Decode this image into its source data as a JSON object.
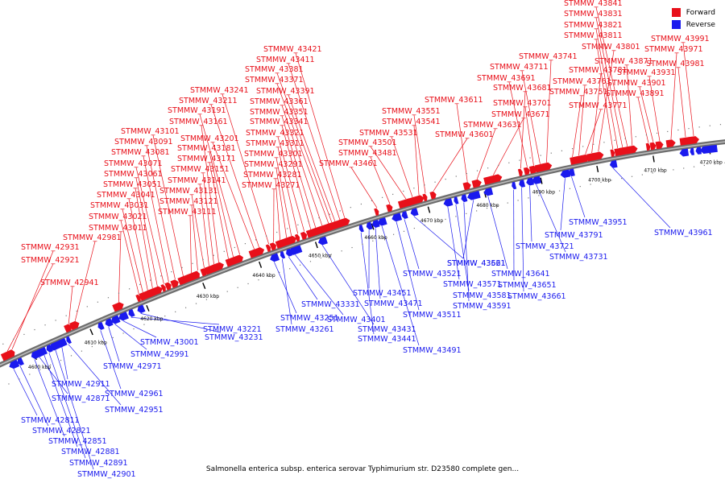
{
  "caption": "Salmonella enterica subsp. enterica serovar Typhimurium str. D23580 complete gen...",
  "legend": [
    {
      "label": "Forward",
      "color": "#e8101a"
    },
    {
      "label": "Reverse",
      "color": "#1a1aee"
    }
  ],
  "colors": {
    "forward": "#e8101a",
    "reverse": "#1a1aee",
    "backbone": "#6e6e6e"
  },
  "kbp_ticks": [
    "4600 kbp",
    "4610 kbp",
    "4620 kbp",
    "4630 kbp",
    "4640 kbp",
    "4650 kbp",
    "4660 kbp",
    "4670 kbp",
    "4680 kbp",
    "4690 kbp",
    "4700 kbp",
    "4710 kbp",
    "4720 kbp"
  ],
  "forward_labels": [
    "STMMW_42921",
    "STMMW_42931",
    "STMMW_42941",
    "STMMW_42981",
    "STMMW_43011",
    "STMMW_43021",
    "STMMW_43031",
    "STMMW_43041",
    "STMMW_43051",
    "STMMW_43061",
    "STMMW_43071",
    "STMMW_43081",
    "STMMW_43091",
    "STMMW_43101",
    "STMMW_43111",
    "STMMW_43121",
    "STMMW_43131",
    "STMMW_43141",
    "STMMW_43151",
    "STMMW_43161",
    "STMMW_43171",
    "STMMW_43181",
    "STMMW_43191",
    "STMMW_43201",
    "STMMW_43211",
    "STMMW_43241",
    "STMMW_43271",
    "STMMW_43281",
    "STMMW_43291",
    "STMMW_43301",
    "STMMW_43311",
    "STMMW_43321",
    "STMMW_43341",
    "STMMW_43351",
    "STMMW_43361",
    "STMMW_43371",
    "STMMW_43381",
    "STMMW_43391",
    "STMMW_43411",
    "STMMW_43421",
    "STMMW_43461",
    "STMMW_43481",
    "STMMW_43501",
    "STMMW_43531",
    "STMMW_43541",
    "STMMW_43551",
    "STMMW_43601",
    "STMMW_43611",
    "STMMW_43631",
    "STMMW_43671",
    "STMMW_43681",
    "STMMW_43691",
    "STMMW_43701",
    "STMMW_43711",
    "STMMW_43741",
    "STMMW_43751",
    "STMMW_43761",
    "STMMW_43771",
    "STMMW_43781",
    "STMMW_43801",
    "STMMW_43811",
    "STMMW_43821",
    "STMMW_43831",
    "STMMW_43841",
    "STMMW_43871",
    "STMMW_43891",
    "STMMW_43901",
    "STMMW_43931",
    "STMMW_43971",
    "STMMW_43981",
    "STMMW_43991"
  ],
  "reverse_labels": [
    "STMMW_42811",
    "STMMW_42821",
    "STMMW_42851",
    "STMMW_42871",
    "STMMW_42881",
    "STMMW_42891",
    "STMMW_42901",
    "STMMW_42911",
    "STMMW_42951",
    "STMMW_42961",
    "STMMW_42971",
    "STMMW_42991",
    "STMMW_43001",
    "STMMW_43221",
    "STMMW_43231",
    "STMMW_43251",
    "STMMW_43261",
    "STMMW_43331",
    "STMMW_43401",
    "STMMW_43431",
    "STMMW_43441",
    "STMMW_43451",
    "STMMW_43471",
    "STMMW_43491",
    "STMMW_43511",
    "STMMW_43521",
    "STMMW_43561",
    "STMMW_43571",
    "STMMW_43581",
    "STMMW_43591",
    "STMMW_43621",
    "STMMW_43641",
    "STMMW_43651",
    "STMMW_43661",
    "STMMW_43721",
    "STMMW_43731",
    "STMMW_43791",
    "STMMW_43951",
    "STMMW_43961"
  ]
}
